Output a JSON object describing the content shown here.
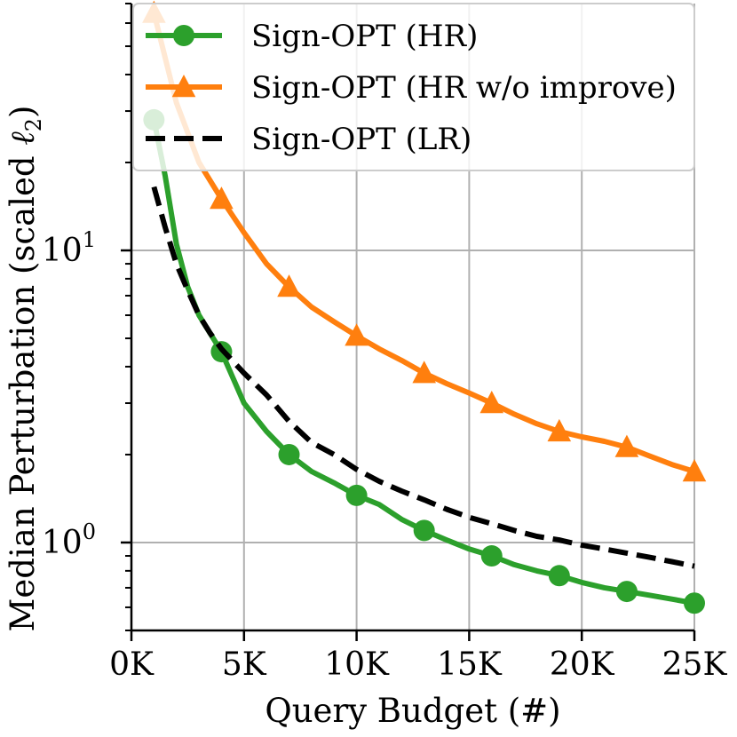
{
  "chart_data": {
    "type": "line",
    "title": "",
    "xlabel": "Query Budget (#)",
    "ylabel_main": "Median Perturbation (scaled ",
    "ylabel_symbol": "ℓ",
    "ylabel_sub": "2",
    "ylabel_close": ")",
    "yscale": "log",
    "xlim": [
      0,
      25000
    ],
    "ylim": [
      0.5,
      70
    ],
    "grid": true,
    "legend_position": "top-right",
    "x_ticks": [
      0,
      5000,
      10000,
      15000,
      20000,
      25000
    ],
    "x_tick_labels": [
      "0K",
      "5K",
      "10K",
      "15K",
      "20K",
      "25K"
    ],
    "y_ticks": [
      1,
      10
    ],
    "y_tick_labels": [
      {
        "base": "10",
        "exp": "0"
      },
      {
        "base": "10",
        "exp": "1"
      }
    ],
    "series": [
      {
        "name": "Sign-OPT (HR)",
        "color": "#2ca02c",
        "style": "solid",
        "marker": "circle",
        "x": [
          1000,
          1500,
          2000,
          2500,
          3000,
          4000,
          5000,
          6000,
          7000,
          8000,
          9000,
          10000,
          11000,
          12000,
          13000,
          14000,
          15000,
          16000,
          17000,
          18000,
          19000,
          20000,
          21000,
          22000,
          23000,
          24000,
          25000
        ],
        "y": [
          28,
          18,
          10.5,
          7.5,
          6.0,
          4.5,
          3.0,
          2.4,
          2.0,
          1.75,
          1.6,
          1.45,
          1.35,
          1.2,
          1.1,
          1.02,
          0.95,
          0.9,
          0.84,
          0.8,
          0.77,
          0.73,
          0.7,
          0.68,
          0.66,
          0.64,
          0.62
        ],
        "marker_x": [
          1000,
          4000,
          7000,
          10000,
          13000,
          16000,
          19000,
          22000,
          25000
        ]
      },
      {
        "name": "Sign-OPT (HR w/o improve)",
        "color": "#ff7f0e",
        "style": "solid",
        "marker": "triangle",
        "x": [
          1000,
          2000,
          3000,
          4000,
          5000,
          6000,
          7000,
          8000,
          9000,
          10000,
          11000,
          12000,
          13000,
          14000,
          15000,
          16000,
          17000,
          18000,
          19000,
          20000,
          21000,
          22000,
          23000,
          24000,
          25000
        ],
        "y": [
          65,
          32,
          20,
          15,
          11.5,
          9.0,
          7.5,
          6.4,
          5.7,
          5.1,
          4.6,
          4.2,
          3.8,
          3.5,
          3.25,
          3.0,
          2.75,
          2.55,
          2.4,
          2.3,
          2.22,
          2.12,
          1.98,
          1.85,
          1.75
        ],
        "marker_x": [
          1000,
          4000,
          7000,
          10000,
          13000,
          16000,
          19000,
          22000,
          25000
        ]
      },
      {
        "name": "Sign-OPT (LR)",
        "color": "#000000",
        "style": "dashed",
        "marker": "none",
        "x": [
          1000,
          1500,
          2000,
          2500,
          3000,
          3500,
          4000,
          5000,
          6000,
          7000,
          8000,
          9000,
          10000,
          11000,
          12000,
          13000,
          14000,
          15000,
          16000,
          17000,
          18000,
          19000,
          20000,
          21000,
          22000,
          23000,
          24000,
          25000
        ],
        "y": [
          16.5,
          12.0,
          9.0,
          7.3,
          6.0,
          5.2,
          4.6,
          3.8,
          3.2,
          2.6,
          2.2,
          2.0,
          1.78,
          1.62,
          1.5,
          1.4,
          1.3,
          1.22,
          1.16,
          1.1,
          1.05,
          1.02,
          0.98,
          0.95,
          0.92,
          0.89,
          0.86,
          0.83
        ],
        "marker_x": []
      }
    ]
  }
}
